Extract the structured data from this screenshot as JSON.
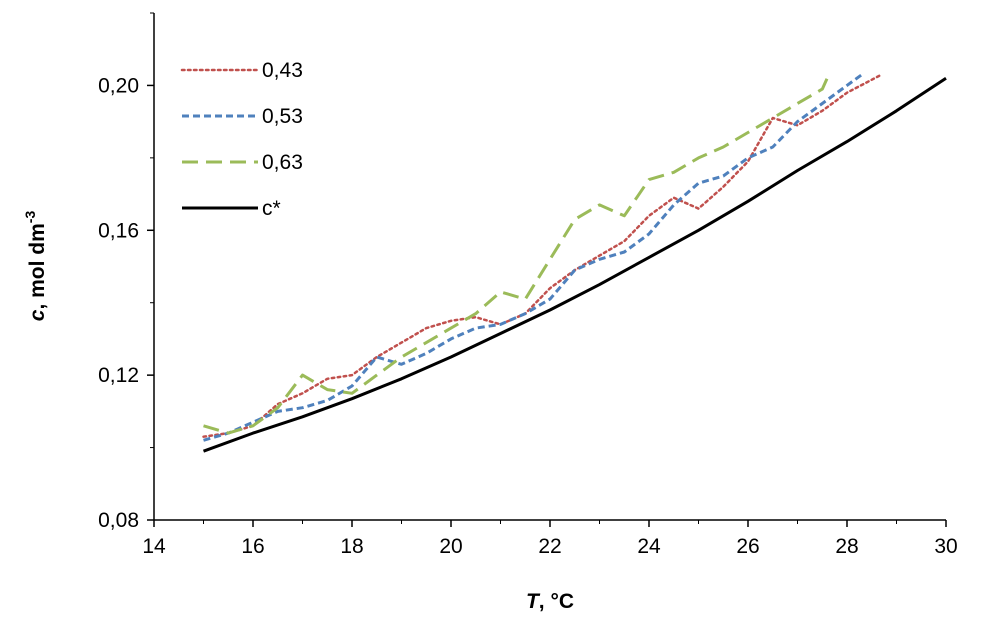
{
  "chart_data": {
    "type": "line",
    "xlabel_italic": "T",
    "xlabel_rest": ", °C",
    "ylabel_italic": "c",
    "ylabel_rest": ", mol dm",
    "ylabel_sup": "-3",
    "xlim": [
      14,
      30
    ],
    "ylim": [
      0.08,
      0.22
    ],
    "x_ticks": [
      14,
      16,
      18,
      20,
      22,
      24,
      26,
      28,
      30
    ],
    "x_tick_labels": [
      "14",
      "16",
      "18",
      "20",
      "22",
      "24",
      "26",
      "28",
      "30"
    ],
    "y_ticks": [
      0.08,
      0.12,
      0.16,
      0.2
    ],
    "y_tick_labels": [
      "0,08",
      "0,12",
      "0,16",
      "0,20"
    ],
    "grid": false,
    "legend_position": "top-left",
    "series": [
      {
        "name": "0,43",
        "color": "#C0504D",
        "style": "dotted",
        "x": [
          15,
          15.5,
          16,
          16.5,
          17,
          17.5,
          18,
          18.5,
          19,
          19.5,
          20,
          20.5,
          21,
          21.5,
          22,
          22.5,
          23,
          23.5,
          24,
          24.5,
          25,
          25.5,
          26,
          26.5,
          27,
          27.5,
          28,
          28.7
        ],
        "y": [
          0.103,
          0.104,
          0.106,
          0.112,
          0.115,
          0.119,
          0.12,
          0.125,
          0.129,
          0.133,
          0.135,
          0.136,
          0.134,
          0.137,
          0.144,
          0.149,
          0.153,
          0.157,
          0.164,
          0.169,
          0.166,
          0.172,
          0.179,
          0.191,
          0.189,
          0.193,
          0.198,
          0.203
        ]
      },
      {
        "name": "0,53",
        "color": "#4F81BD",
        "style": "dashed",
        "x": [
          15,
          15.5,
          16,
          16.5,
          17,
          17.5,
          18,
          18.5,
          19,
          19.5,
          20,
          20.5,
          21,
          21.5,
          22,
          22.5,
          23,
          23.5,
          24,
          24.5,
          25,
          25.5,
          26,
          26.5,
          27,
          27.5,
          28,
          28.3
        ],
        "y": [
          0.102,
          0.104,
          0.107,
          0.11,
          0.111,
          0.113,
          0.117,
          0.125,
          0.123,
          0.126,
          0.13,
          0.133,
          0.134,
          0.137,
          0.141,
          0.149,
          0.152,
          0.154,
          0.159,
          0.167,
          0.173,
          0.175,
          0.18,
          0.183,
          0.19,
          0.195,
          0.2,
          0.203
        ]
      },
      {
        "name": "0,63",
        "color": "#9BBB59",
        "style": "longdash",
        "x": [
          15,
          15.5,
          16,
          16.5,
          17,
          17.5,
          18,
          18.5,
          19,
          19.5,
          20,
          20.5,
          21,
          21.5,
          22,
          22.5,
          23,
          23.5,
          24,
          24.5,
          25,
          25.5,
          26,
          26.5,
          27,
          27.5,
          27.6
        ],
        "y": [
          0.106,
          0.104,
          0.106,
          0.111,
          0.12,
          0.116,
          0.115,
          0.12,
          0.125,
          0.129,
          0.133,
          0.137,
          0.143,
          0.141,
          0.152,
          0.163,
          0.167,
          0.164,
          0.174,
          0.176,
          0.18,
          0.183,
          0.187,
          0.191,
          0.195,
          0.199,
          0.202
        ]
      },
      {
        "name": "c*",
        "color": "#000000",
        "style": "solid",
        "x": [
          15,
          16,
          17,
          18,
          19,
          20,
          21,
          22,
          23,
          24,
          25,
          26,
          27,
          28,
          29,
          30
        ],
        "y": [
          0.099,
          0.104,
          0.1085,
          0.1135,
          0.119,
          0.125,
          0.1315,
          0.138,
          0.145,
          0.1525,
          0.16,
          0.168,
          0.1765,
          0.1845,
          0.193,
          0.202
        ]
      }
    ]
  }
}
